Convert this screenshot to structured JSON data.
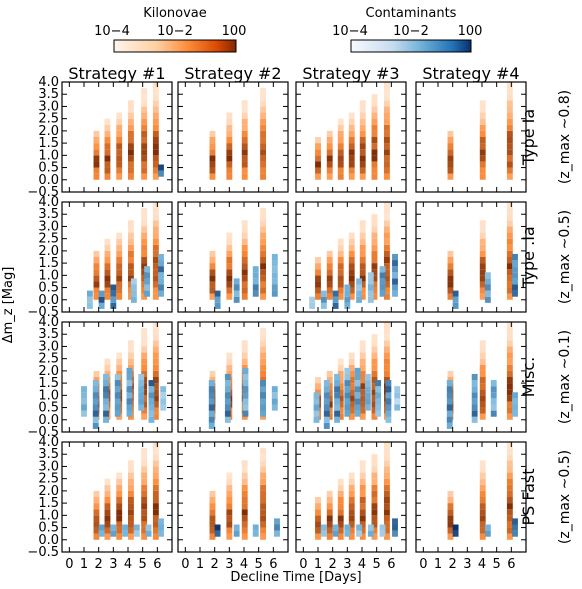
{
  "colorbars": [
    {
      "title": "Kilonovae",
      "ticks": [
        "10−4",
        "10−2",
        "100"
      ],
      "cmap": "oranges",
      "light": "#fff0e2",
      "dark": "#7a2a04"
    },
    {
      "title": "Contaminants",
      "ticks": [
        "10−4",
        "10−2",
        "100"
      ],
      "cmap": "blues",
      "light": "#f2f7fc",
      "dark": "#08306b"
    }
  ],
  "figure": {
    "xlabel": "Decline Time [Days]",
    "ylabel": "Δm_z [Mag]",
    "x_ticks": [
      "0",
      "1",
      "2",
      "3",
      "4",
      "5",
      "6"
    ],
    "y_ticks": [
      "−0.5",
      "0.0",
      "0.5",
      "1.0",
      "1.5",
      "2.0",
      "2.5",
      "3.0",
      "3.5",
      "4.0"
    ]
  },
  "chart_data": {
    "type": "heatmap",
    "columns": [
      "Strategy #1",
      "Strategy #2",
      "Strategy #3",
      "Strategy #4"
    ],
    "rows": [
      {
        "label": "Type Ia",
        "z_label": "(z_max ∼0.8)"
      },
      {
        "label": "Type .Ia",
        "z_label": "(z_max ∼0.5)"
      },
      {
        "label": "Misc.",
        "z_label": "(z_max ∼0.1)"
      },
      {
        "label": "PS Fast",
        "z_label": "(z_max ∼0.5)"
      }
    ],
    "xlim": [
      -0.5,
      7
    ],
    "ylim": [
      -0.5,
      4.0
    ],
    "cell_width_days": 0.4,
    "cell_height_mag": 0.25,
    "color_scale": "log",
    "color_range": [
      0.0001,
      1
    ],
    "kilonova_sampled_days": [
      [
        1.85,
        2.6,
        3.4,
        4.2,
        5.1,
        5.9
      ],
      [
        1.85,
        3.0,
        4.05,
        5.3
      ],
      [
        1.0,
        1.8,
        2.55,
        3.3,
        4.05,
        4.85,
        5.7
      ],
      [
        1.85,
        4.05,
        5.9
      ]
    ],
    "contaminant_columns": [
      [
        [
          {
            "day": 6.25,
            "y": [
              0.25,
              0.5
            ],
            "v": 0.9
          }
        ],
        [],
        [],
        []
      ],
      [
        [
          {
            "day": 1.4,
            "y": [
              -0.25,
              0.25
            ],
            "v": 0.5
          },
          {
            "day": 2.2,
            "y": [
              -0.25,
              0.25
            ],
            "v": 0.7
          },
          {
            "day": 3.0,
            "y": [
              -0.25,
              0.5
            ],
            "v": 0.6
          },
          {
            "day": 4.4,
            "y": [
              0.0,
              0.75
            ],
            "v": 0.4
          },
          {
            "day": 5.3,
            "y": [
              0.25,
              1.25
            ],
            "v": 0.5
          },
          {
            "day": 6.25,
            "y": [
              0.25,
              1.75
            ],
            "v": 0.6
          }
        ],
        [
          {
            "day": 2.2,
            "y": [
              -0.25,
              0.25
            ],
            "v": 0.8
          },
          {
            "day": 3.5,
            "y": [
              0.0,
              0.75
            ],
            "v": 0.5
          },
          {
            "day": 4.8,
            "y": [
              0.25,
              1.25
            ],
            "v": 0.5
          },
          {
            "day": 6.1,
            "y": [
              0.25,
              1.75
            ],
            "v": 0.6
          }
        ],
        [
          {
            "day": 0.6,
            "y": [
              -0.25,
              0.0
            ],
            "v": 0.4
          },
          {
            "day": 1.4,
            "y": [
              -0.25,
              0.25
            ],
            "v": 0.5
          },
          {
            "day": 2.2,
            "y": [
              -0.25,
              0.25
            ],
            "v": 0.6
          },
          {
            "day": 3.0,
            "y": [
              -0.25,
              0.5
            ],
            "v": 0.5
          },
          {
            "day": 3.8,
            "y": [
              0.0,
              0.75
            ],
            "v": 0.4
          },
          {
            "day": 4.6,
            "y": [
              0.0,
              1.0
            ],
            "v": 0.4
          },
          {
            "day": 5.4,
            "y": [
              0.25,
              1.25
            ],
            "v": 0.5
          },
          {
            "day": 6.25,
            "y": [
              0.25,
              1.75
            ],
            "v": 0.6
          }
        ],
        [
          {
            "day": 2.2,
            "y": [
              -0.25,
              0.25
            ],
            "v": 0.8
          },
          {
            "day": 4.4,
            "y": [
              0.0,
              1.0
            ],
            "v": 0.5
          },
          {
            "day": 6.25,
            "y": [
              0.25,
              1.75
            ],
            "v": 0.6
          }
        ]
      ],
      [
        [
          {
            "day": 1.0,
            "y": [
              0.25,
              1.25
            ],
            "v": 0.4
          },
          {
            "day": 1.8,
            "y": [
              -0.25,
              1.5
            ],
            "v": 0.6
          },
          {
            "day": 2.5,
            "y": [
              0.0,
              1.75
            ],
            "v": 0.6
          },
          {
            "day": 3.3,
            "y": [
              0.25,
              1.75
            ],
            "v": 0.5
          },
          {
            "day": 4.1,
            "y": [
              0.25,
              2.0
            ],
            "v": 0.5
          },
          {
            "day": 4.9,
            "y": [
              0.5,
              1.75
            ],
            "v": 0.4
          },
          {
            "day": 5.6,
            "y": [
              0.0,
              1.5
            ],
            "v": 0.6
          },
          {
            "day": 6.4,
            "y": [
              0.5,
              1.25
            ],
            "v": 0.3
          }
        ],
        [
          {
            "day": 1.8,
            "y": [
              -0.25,
              1.5
            ],
            "v": 0.6
          },
          {
            "day": 2.9,
            "y": [
              0.0,
              1.75
            ],
            "v": 0.6
          },
          {
            "day": 4.1,
            "y": [
              0.25,
              2.0
            ],
            "v": 0.5
          },
          {
            "day": 5.3,
            "y": [
              0.25,
              1.5
            ],
            "v": 0.5
          },
          {
            "day": 6.1,
            "y": [
              0.5,
              1.25
            ],
            "v": 0.4
          }
        ],
        [
          {
            "day": 0.9,
            "y": [
              0.0,
              1.0
            ],
            "v": 0.4
          },
          {
            "day": 1.6,
            "y": [
              -0.25,
              1.5
            ],
            "v": 0.6
          },
          {
            "day": 2.3,
            "y": [
              0.0,
              1.75
            ],
            "v": 0.6
          },
          {
            "day": 3.0,
            "y": [
              0.25,
              2.0
            ],
            "v": 0.5
          },
          {
            "day": 3.7,
            "y": [
              0.25,
              2.0
            ],
            "v": 0.5
          },
          {
            "day": 4.4,
            "y": [
              0.5,
              1.75
            ],
            "v": 0.4
          },
          {
            "day": 5.1,
            "y": [
              0.25,
              1.5
            ],
            "v": 0.5
          },
          {
            "day": 5.8,
            "y": [
              0.0,
              1.5
            ],
            "v": 0.6
          },
          {
            "day": 6.4,
            "y": [
              0.5,
              1.25
            ],
            "v": 0.3
          }
        ],
        [
          {
            "day": 1.8,
            "y": [
              -0.25,
              1.5
            ],
            "v": 0.6
          },
          {
            "day": 3.5,
            "y": [
              0.0,
              1.75
            ],
            "v": 0.6
          },
          {
            "day": 4.8,
            "y": [
              0.25,
              1.5
            ],
            "v": 0.5
          },
          {
            "day": 6.25,
            "y": [
              0.25,
              1.0
            ],
            "v": 0.4
          }
        ]
      ],
      [
        [
          {
            "day": 2.2,
            "y": [
              0.25,
              0.5
            ],
            "v": 0.4
          },
          {
            "day": 3.0,
            "y": [
              0.25,
              0.5
            ],
            "v": 0.4
          },
          {
            "day": 3.8,
            "y": [
              0.25,
              0.5
            ],
            "v": 0.4
          },
          {
            "day": 4.6,
            "y": [
              0.25,
              0.5
            ],
            "v": 0.4
          },
          {
            "day": 5.4,
            "y": [
              0.25,
              0.5
            ],
            "v": 0.4
          },
          {
            "day": 6.25,
            "y": [
              0.25,
              0.75
            ],
            "v": 0.6
          }
        ],
        [
          {
            "day": 2.2,
            "y": [
              0.25,
              0.5
            ],
            "v": 0.7
          },
          {
            "day": 3.5,
            "y": [
              0.25,
              0.5
            ],
            "v": 0.4
          },
          {
            "day": 4.8,
            "y": [
              0.25,
              0.5
            ],
            "v": 0.4
          },
          {
            "day": 6.25,
            "y": [
              0.25,
              0.75
            ],
            "v": 0.6
          }
        ],
        [
          {
            "day": 1.4,
            "y": [
              0.25,
              0.5
            ],
            "v": 0.3
          },
          {
            "day": 2.2,
            "y": [
              0.25,
              0.5
            ],
            "v": 0.4
          },
          {
            "day": 3.0,
            "y": [
              0.25,
              0.5
            ],
            "v": 0.4
          },
          {
            "day": 3.8,
            "y": [
              0.25,
              0.5
            ],
            "v": 0.4
          },
          {
            "day": 4.6,
            "y": [
              0.25,
              0.5
            ],
            "v": 0.4
          },
          {
            "day": 5.4,
            "y": [
              0.25,
              0.5
            ],
            "v": 0.4
          },
          {
            "day": 6.25,
            "y": [
              0.25,
              0.75
            ],
            "v": 0.6
          }
        ],
        [
          {
            "day": 2.2,
            "y": [
              0.25,
              0.5
            ],
            "v": 0.8
          },
          {
            "day": 4.4,
            "y": [
              0.25,
              0.5
            ],
            "v": 0.4
          },
          {
            "day": 6.25,
            "y": [
              0.25,
              0.75
            ],
            "v": 0.6
          }
        ]
      ]
    ]
  }
}
